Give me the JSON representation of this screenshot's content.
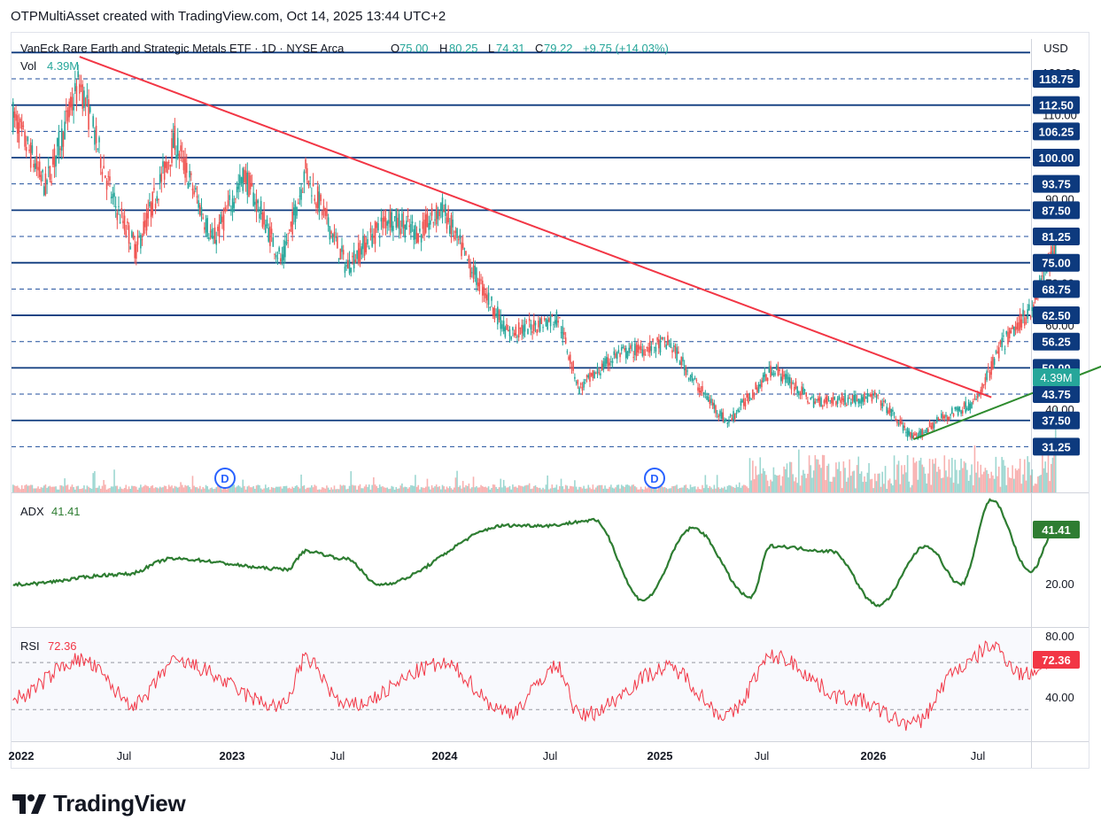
{
  "header": {
    "credit": "OTPMultiAsset created with TradingView.com, Oct 14, 2025 13:44 UTC+2"
  },
  "legend": {
    "symbol": "VanEck Rare Earth and Strategic Metals ETF · 1D · NYSE Arca",
    "o_label": "O",
    "o_value": "75.00",
    "h_label": "H",
    "h_value": "80.25",
    "l_label": "L",
    "l_value": "74.31",
    "c_label": "C",
    "c_value": "79.22",
    "change": "+9.75 (+14.03%)",
    "vol_label": "Vol",
    "vol_value": "4.39M"
  },
  "price_axis": {
    "currency": "USD",
    "ticks": [
      "120.00",
      "110.00",
      "100.00",
      "90.00",
      "80.00",
      "70.00",
      "60.00",
      "50.00",
      "40.00"
    ],
    "level_badges": [
      "118.75",
      "112.50",
      "106.25",
      "100.00",
      "93.75",
      "87.50",
      "81.25",
      "75.00",
      "68.75",
      "62.50",
      "56.25",
      "50.00",
      "43.75",
      "37.50",
      "31.25"
    ],
    "volume_badge": "4.39M"
  },
  "dividend_markers": [
    "D",
    "D"
  ],
  "adx": {
    "label": "ADX",
    "value": "41.41",
    "ticks": [
      "40.00",
      "20.00"
    ]
  },
  "rsi": {
    "label": "RSI",
    "value": "72.36",
    "ticks": [
      "80.00",
      "40.00"
    ]
  },
  "time_axis": [
    "2022",
    "Jul",
    "2023",
    "Jul",
    "2024",
    "Jul",
    "2025",
    "Jul",
    "2026",
    "Jul"
  ],
  "branding": {
    "name": "TradingView"
  },
  "colors": {
    "up": "#26a69a",
    "down": "#ef5350",
    "solid_level": "#0d3a7e",
    "dashed_level": "#1f4e9c",
    "downtrend": "#f23645",
    "uptrend": "#2e8b2e",
    "adx": "#2e7d32",
    "rsi": "#f23645",
    "badge": "#0d3a7e",
    "volume_badge": "#26a69a"
  },
  "chart_data": [
    {
      "type": "candlestick",
      "title": "VanEck Rare Earth and Strategic Metals ETF · 1D · NYSE Arca",
      "xlabel": "",
      "ylabel": "USD",
      "x_range": [
        "2022-01",
        "2026-09"
      ],
      "ylim": [
        28,
        126
      ],
      "key_points": [
        {
          "date": "2022-01-03",
          "close": 110
        },
        {
          "date": "2022-02-15",
          "close": 93
        },
        {
          "date": "2022-04-01",
          "close": 118
        },
        {
          "date": "2022-05-15",
          "close": 90
        },
        {
          "date": "2022-06-15",
          "close": 78
        },
        {
          "date": "2022-08-05",
          "close": 104
        },
        {
          "date": "2022-09-25",
          "close": 80
        },
        {
          "date": "2022-11-05",
          "close": 96
        },
        {
          "date": "2022-12-25",
          "close": 75
        },
        {
          "date": "2023-01-25",
          "close": 97
        },
        {
          "date": "2023-03-20",
          "close": 74
        },
        {
          "date": "2023-05-15",
          "close": 86
        },
        {
          "date": "2023-06-25",
          "close": 82
        },
        {
          "date": "2023-07-25",
          "close": 88
        },
        {
          "date": "2023-08-25",
          "close": 76
        },
        {
          "date": "2023-10-20",
          "close": 58
        },
        {
          "date": "2023-12-25",
          "close": 62
        },
        {
          "date": "2024-01-22",
          "close": 45
        },
        {
          "date": "2024-03-10",
          "close": 53
        },
        {
          "date": "2024-05-20",
          "close": 56
        },
        {
          "date": "2024-06-25",
          "close": 46
        },
        {
          "date": "2024-08-05",
          "close": 37
        },
        {
          "date": "2024-10-05",
          "close": 50
        },
        {
          "date": "2024-11-25",
          "close": 42
        },
        {
          "date": "2025-02-20",
          "close": 43
        },
        {
          "date": "2025-04-08",
          "close": 33
        },
        {
          "date": "2025-05-15",
          "close": 38
        },
        {
          "date": "2025-06-30",
          "close": 42
        },
        {
          "date": "2025-08-01",
          "close": 55
        },
        {
          "date": "2025-09-10",
          "close": 64
        },
        {
          "date": "2025-10-13",
          "close": 79.22
        }
      ],
      "last_bar": {
        "open": 75.0,
        "high": 80.25,
        "low": 74.31,
        "close": 79.22,
        "change": 9.75,
        "change_pct": 14.03
      },
      "horizontal_levels": [
        118.75,
        112.5,
        106.25,
        100,
        93.75,
        87.5,
        81.25,
        75,
        68.75,
        62.5,
        56.25,
        50,
        43.75,
        37.5,
        31.25
      ],
      "solid_levels": [
        125,
        112.5,
        100,
        87.5,
        75,
        62.5,
        50,
        37.5
      ],
      "trendlines": [
        {
          "name": "downtrend",
          "from": {
            "date": "2022-04-01",
            "price": 124
          },
          "to": {
            "date": "2025-07-20",
            "price": 43
          }
        },
        {
          "name": "uptrend",
          "from": {
            "date": "2025-04-08",
            "price": 33
          },
          "to": {
            "date": "2026-04-01",
            "price": 58
          }
        }
      ],
      "volume_last": "4.39M",
      "grid": true,
      "legend": "top-left"
    },
    {
      "type": "line",
      "title": "ADX",
      "series": [
        {
          "name": "ADX",
          "last": 41.41
        }
      ],
      "ylim": [
        10,
        55
      ],
      "ticks": [
        40,
        20
      ],
      "key_points": [
        {
          "date": "2022-01-03",
          "value": 20
        },
        {
          "date": "2022-06-01",
          "value": 24
        },
        {
          "date": "2022-08-01",
          "value": 30
        },
        {
          "date": "2023-01-01",
          "value": 26
        },
        {
          "date": "2023-01-25",
          "value": 33
        },
        {
          "date": "2023-03-20",
          "value": 30
        },
        {
          "date": "2023-05-01",
          "value": 20
        },
        {
          "date": "2023-10-20",
          "value": 43
        },
        {
          "date": "2023-12-10",
          "value": 43
        },
        {
          "date": "2024-02-10",
          "value": 45
        },
        {
          "date": "2024-04-15",
          "value": 14
        },
        {
          "date": "2024-06-20",
          "value": 42
        },
        {
          "date": "2024-09-05",
          "value": 15
        },
        {
          "date": "2024-10-01",
          "value": 35
        },
        {
          "date": "2024-12-20",
          "value": 33
        },
        {
          "date": "2025-02-20",
          "value": 12
        },
        {
          "date": "2025-04-25",
          "value": 35
        },
        {
          "date": "2025-06-10",
          "value": 20
        },
        {
          "date": "2025-07-20",
          "value": 53
        },
        {
          "date": "2025-09-10",
          "value": 25
        },
        {
          "date": "2025-10-13",
          "value": 41.41
        }
      ]
    },
    {
      "type": "line",
      "title": "RSI",
      "series": [
        {
          "name": "RSI",
          "last": 72.36
        }
      ],
      "ylim": [
        15,
        90
      ],
      "ticks": [
        80,
        40
      ],
      "bands": [
        70,
        30
      ],
      "key_points": [
        {
          "date": "2022-01-03",
          "value": 40
        },
        {
          "date": "2022-04-01",
          "value": 72
        },
        {
          "date": "2022-06-15",
          "value": 35
        },
        {
          "date": "2022-08-05",
          "value": 70
        },
        {
          "date": "2022-12-25",
          "value": 33
        },
        {
          "date": "2023-01-25",
          "value": 72
        },
        {
          "date": "2023-03-20",
          "value": 33
        },
        {
          "date": "2023-07-25",
          "value": 68
        },
        {
          "date": "2023-10-20",
          "value": 28
        },
        {
          "date": "2023-12-25",
          "value": 66
        },
        {
          "date": "2024-01-22",
          "value": 25
        },
        {
          "date": "2024-05-20",
          "value": 65
        },
        {
          "date": "2024-08-05",
          "value": 25
        },
        {
          "date": "2024-10-05",
          "value": 75
        },
        {
          "date": "2025-01-10",
          "value": 40
        },
        {
          "date": "2025-04-08",
          "value": 18
        },
        {
          "date": "2025-06-10",
          "value": 66
        },
        {
          "date": "2025-07-20",
          "value": 84
        },
        {
          "date": "2025-09-01",
          "value": 60
        },
        {
          "date": "2025-10-13",
          "value": 72.36
        }
      ]
    }
  ]
}
